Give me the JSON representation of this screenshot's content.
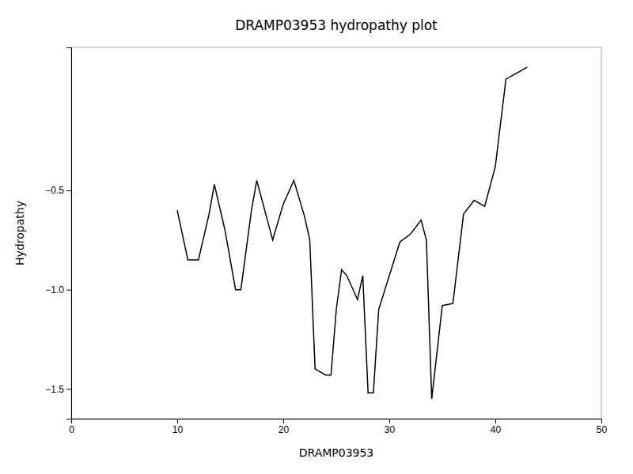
{
  "chart_data": {
    "type": "line",
    "title": "DRAMP03953 hydropathy plot",
    "xlabel": "DRAMP03953",
    "ylabel": "Hydropathy",
    "xlim": [
      0,
      50
    ],
    "ylim": [
      -1.65,
      0.22
    ],
    "xticks": [
      0,
      10,
      20,
      30,
      40,
      50
    ],
    "yticks": [
      {
        "value": -1.5,
        "label": "−1.5"
      },
      {
        "value": -1.0,
        "label": "−1.0"
      },
      {
        "value": -0.5,
        "label": "−0.5"
      }
    ],
    "color": "#000000",
    "x": [
      10,
      11,
      12,
      13,
      13.5,
      14.5,
      15.5,
      16,
      17,
      17.5,
      18,
      18.5,
      19,
      20,
      21,
      22,
      22.5,
      23,
      24,
      24.5,
      25,
      25.5,
      26,
      27,
      27.5,
      28,
      28.5,
      29,
      30,
      31,
      32,
      33,
      33.5,
      34,
      35,
      36,
      37,
      38,
      39,
      40,
      41,
      42,
      43
    ],
    "values": [
      -0.6,
      -0.85,
      -0.85,
      -0.62,
      -0.47,
      -0.7,
      -1.0,
      -1.0,
      -0.6,
      -0.45,
      -0.55,
      -0.65,
      -0.75,
      -0.57,
      -0.45,
      -0.63,
      -0.75,
      -1.4,
      -1.43,
      -1.43,
      -1.1,
      -0.9,
      -0.93,
      -1.05,
      -0.93,
      -1.52,
      -1.52,
      -1.1,
      -0.93,
      -0.76,
      -0.72,
      -0.65,
      -0.75,
      -1.55,
      -1.08,
      -1.07,
      -0.62,
      -0.55,
      -0.58,
      -0.38,
      0.06,
      0.09,
      0.12
    ]
  }
}
